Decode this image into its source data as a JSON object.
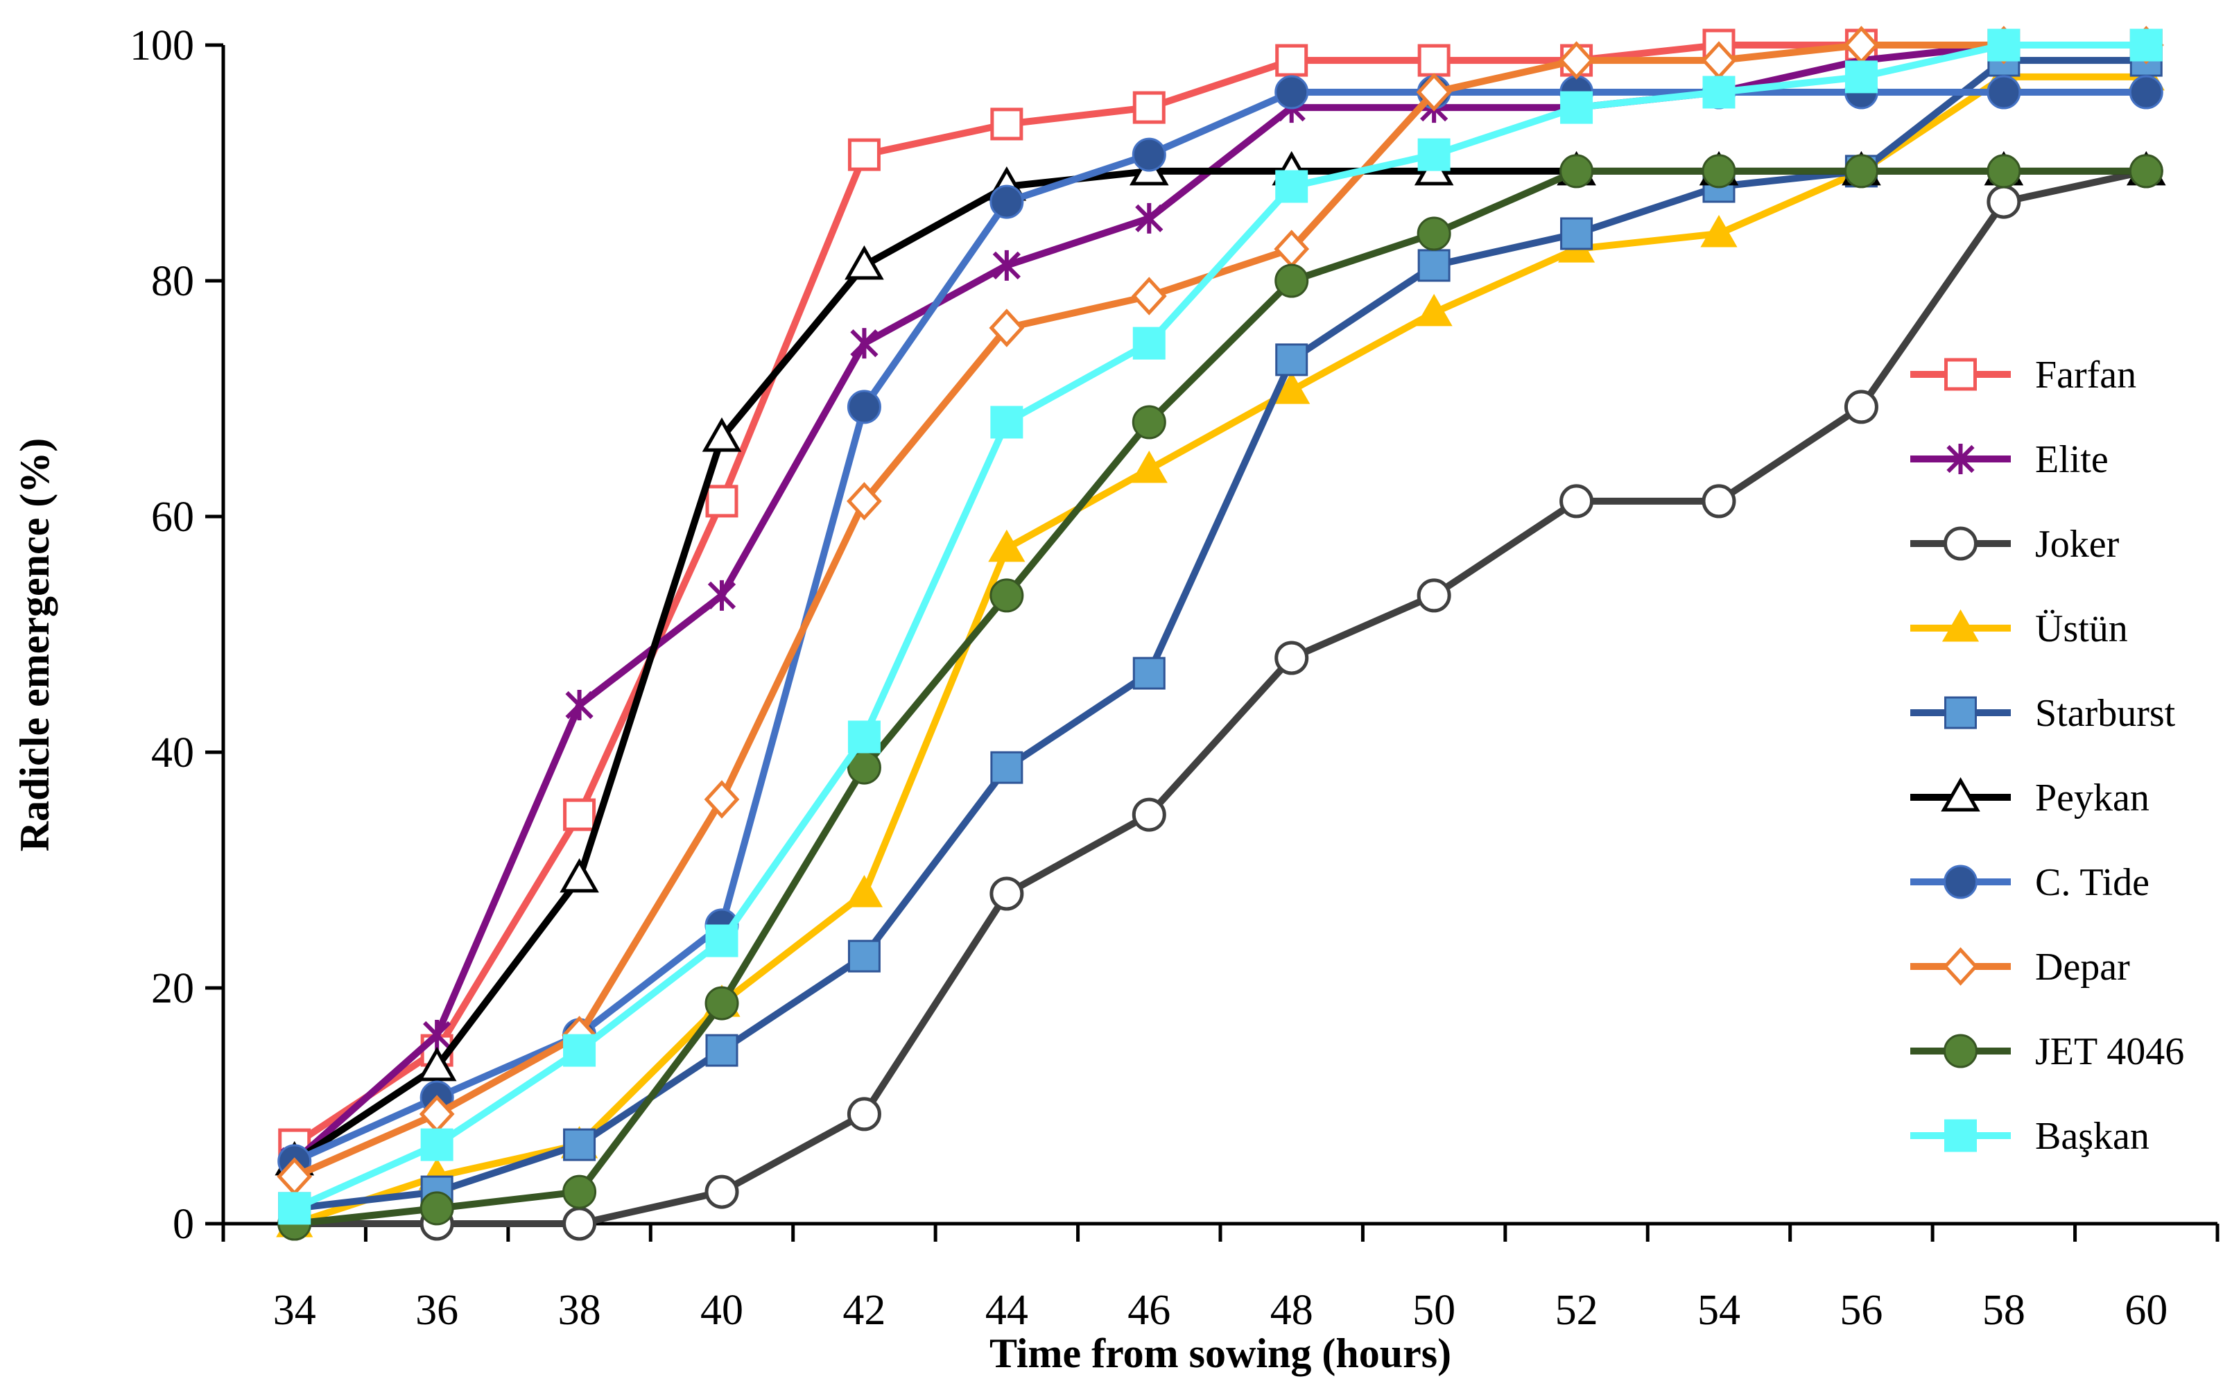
{
  "chart_data": {
    "type": "line",
    "title": "",
    "xlabel": "Time from sowing (hours)",
    "ylabel": "Radicle emergence (%)",
    "x": [
      34,
      36,
      38,
      40,
      42,
      44,
      46,
      48,
      50,
      52,
      54,
      56,
      58,
      60
    ],
    "xlim": [
      33,
      61
    ],
    "ylim": [
      0,
      100
    ],
    "yticks": [
      0,
      20,
      40,
      60,
      80,
      100
    ],
    "grid": false,
    "legend_position": "right",
    "series": [
      {
        "name": "Farfan",
        "color": "#F25858",
        "marker": "square-open",
        "values": [
          6.7,
          14.7,
          34.7,
          61.3,
          90.7,
          93.3,
          94.7,
          98.7,
          98.7,
          98.7,
          100,
          100,
          100,
          100
        ]
      },
      {
        "name": "Elite",
        "color": "#7E0E82",
        "marker": "star",
        "values": [
          5.3,
          16,
          44,
          53.3,
          74.7,
          81.3,
          85.3,
          94.7,
          94.7,
          94.7,
          96,
          98.7,
          100,
          100
        ]
      },
      {
        "name": "Joker",
        "color": "#404040",
        "marker": "circle-open",
        "values": [
          0,
          0,
          0,
          2.7,
          9.3,
          28,
          34.7,
          48,
          53.3,
          61.3,
          61.3,
          69.3,
          86.7,
          89.3
        ]
      },
      {
        "name": "Üstün",
        "color": "#FFC000",
        "marker": "triangle",
        "values": [
          0,
          4,
          6.7,
          18.7,
          28,
          57.3,
          64,
          70.7,
          77.3,
          82.7,
          84,
          89.3,
          97.3,
          97.3
        ]
      },
      {
        "name": "Starburst",
        "color": "#2F5597",
        "fill": "#5B9BD5",
        "marker": "square",
        "values": [
          1.3,
          2.7,
          6.7,
          14.7,
          22.7,
          38.7,
          46.7,
          73.3,
          81.3,
          84,
          88,
          89.3,
          98.7,
          98.7
        ]
      },
      {
        "name": "Peykan",
        "color": "#000000",
        "marker": "triangle-open",
        "values": [
          5.3,
          13.3,
          29.3,
          66.7,
          81.3,
          88,
          89.3,
          89.3,
          89.3,
          89.3,
          89.3,
          89.3,
          89.3,
          89.3
        ]
      },
      {
        "name": "C. Tide",
        "color": "#4472C4",
        "fill": "#2F5597",
        "marker": "circle",
        "values": [
          5.3,
          10.7,
          16,
          25.3,
          69.3,
          86.7,
          90.7,
          96,
          96,
          96,
          96,
          96,
          96,
          96
        ]
      },
      {
        "name": "Depar",
        "color": "#ED7D31",
        "marker": "diamond-open",
        "values": [
          4,
          9.3,
          16,
          36,
          61.3,
          76,
          78.7,
          82.7,
          96,
          98.7,
          98.7,
          100,
          100,
          100
        ]
      },
      {
        "name": "JET 4046",
        "color": "#375623",
        "fill": "#548235",
        "marker": "circle",
        "values": [
          0,
          1.3,
          2.7,
          18.7,
          38.7,
          53.3,
          68,
          80,
          84,
          89.3,
          89.3,
          89.3,
          89.3,
          89.3
        ]
      },
      {
        "name": "Başkan",
        "color": "#5CFAFA",
        "marker": "square",
        "values": [
          1.3,
          6.7,
          14.7,
          24,
          41.3,
          68,
          74.7,
          88,
          90.7,
          94.7,
          96,
          97.3,
          100,
          100
        ]
      }
    ]
  }
}
